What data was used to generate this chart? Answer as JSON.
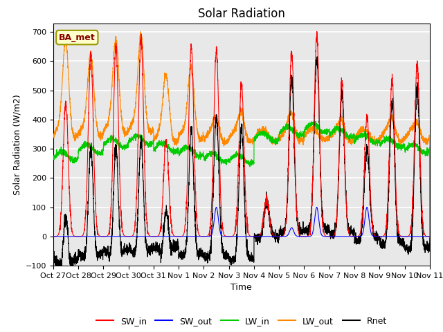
{
  "title": "Solar Radiation",
  "ylabel": "Solar Radiation (W/m2)",
  "xlabel": "Time",
  "ylim": [
    -100,
    730
  ],
  "yticks": [
    -100,
    0,
    100,
    200,
    300,
    400,
    500,
    600,
    700
  ],
  "xtick_labels": [
    "Oct 27",
    "Oct 28",
    "Oct 29",
    "Oct 30",
    "Oct 31",
    "Nov 1",
    "Nov 2",
    "Nov 3",
    "Nov 4",
    "Nov 5",
    "Nov 6",
    "Nov 7",
    "Nov 8",
    "Nov 9",
    "Nov 10",
    "Nov 11"
  ],
  "annotation_text": "BA_met",
  "colors": {
    "SW_in": "#ff0000",
    "SW_out": "#0000ff",
    "LW_in": "#00cc00",
    "LW_out": "#ff8800",
    "Rnet": "#000000"
  },
  "background_color": "#e8e8e8",
  "grid_color": "#ffffff",
  "title_fontsize": 12,
  "label_fontsize": 9,
  "tick_fontsize": 8,
  "legend_fontsize": 9,
  "sw_in_peaks": [
    460,
    620,
    650,
    680,
    330,
    650,
    640,
    520,
    130,
    630,
    690,
    530,
    410,
    540,
    590
  ],
  "lw_out_spike_peaks": [
    660,
    615,
    660,
    680,
    545,
    570,
    400,
    415,
    415,
    350,
    390,
    350,
    395,
    380
  ],
  "lw_out_base": 330,
  "lw_in_base": 295,
  "night_rnet": -80
}
